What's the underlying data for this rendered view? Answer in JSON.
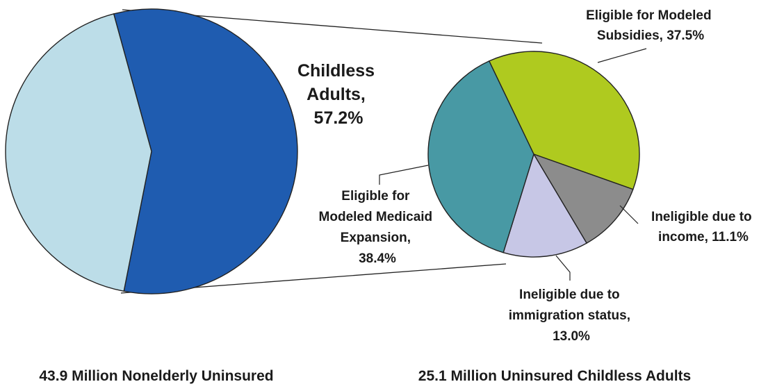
{
  "chart_data": [
    {
      "type": "pie",
      "caption": "43.9 Million Nonelderly Uninsured",
      "slices": [
        {
          "label": "Childless Adults, 57.2%",
          "label_lines": [
            "Childless",
            "Adults,",
            "57.2%"
          ],
          "value": 57.2,
          "color": "#1f5cb0"
        },
        {
          "label": "",
          "label_lines": [],
          "value": 42.8,
          "color": "#bcdde8"
        }
      ]
    },
    {
      "type": "pie",
      "caption": "25.1 Million Uninsured Childless Adults",
      "slices": [
        {
          "label": "Eligible for Modeled Subsidies, 37.5%",
          "label_lines": [
            "Eligible for Modeled",
            "Subsidies, 37.5%"
          ],
          "value": 37.5,
          "color": "#afca1f"
        },
        {
          "label": "Ineligible due to income, 11.1%",
          "label_lines": [
            "Ineligible due to",
            "income, 11.1%"
          ],
          "value": 11.1,
          "color": "#8c8c8c"
        },
        {
          "label": "Ineligible due to immigration status, 13.0%",
          "label_lines": [
            "Ineligible due to",
            "immigration status,",
            "13.0%"
          ],
          "value": 13.0,
          "color": "#c7c7e6"
        },
        {
          "label": "Eligible for Modeled Medicaid Expansion, 38.4%",
          "label_lines": [
            "Eligible for",
            "Modeled Medicaid",
            "Expansion,",
            "38.4%"
          ],
          "value": 38.4,
          "color": "#4899a4"
        }
      ]
    }
  ]
}
